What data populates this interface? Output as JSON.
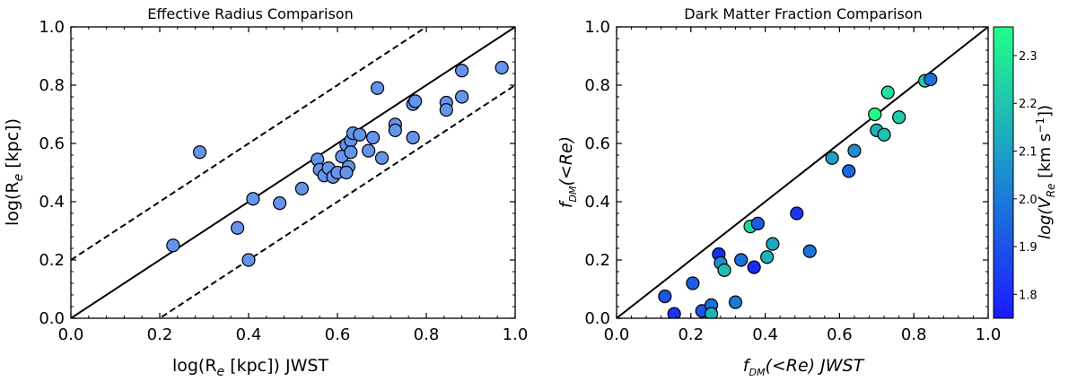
{
  "chart_data": [
    {
      "type": "scatter",
      "title": "Effective Radius Comparison",
      "xlabel_prefix": "log(R",
      "xlabel_sub": "e",
      "xlabel_suffix": " [kpc]) JWST",
      "ylabel_prefix": "log(R",
      "ylabel_sub": "e",
      "ylabel_suffix": " [kpc])",
      "xlim": [
        0.0,
        1.0
      ],
      "ylim": [
        0.0,
        1.0
      ],
      "xticks": [
        "0.0",
        "0.2",
        "0.4",
        "0.6",
        "0.8",
        "1.0"
      ],
      "yticks": [
        "0.0",
        "0.2",
        "0.4",
        "0.6",
        "0.8",
        "1.0"
      ],
      "marker_color": "#6495ED",
      "reference_lines": [
        {
          "style": "solid",
          "offset": 0.0
        },
        {
          "style": "dashed",
          "offset": 0.2
        },
        {
          "style": "dashed",
          "offset": -0.2
        }
      ],
      "points": [
        {
          "x": 0.23,
          "y": 0.25
        },
        {
          "x": 0.29,
          "y": 0.57
        },
        {
          "x": 0.375,
          "y": 0.31
        },
        {
          "x": 0.4,
          "y": 0.2
        },
        {
          "x": 0.41,
          "y": 0.41
        },
        {
          "x": 0.47,
          "y": 0.395
        },
        {
          "x": 0.52,
          "y": 0.445
        },
        {
          "x": 0.555,
          "y": 0.545
        },
        {
          "x": 0.56,
          "y": 0.51
        },
        {
          "x": 0.57,
          "y": 0.49
        },
        {
          "x": 0.58,
          "y": 0.515
        },
        {
          "x": 0.59,
          "y": 0.485
        },
        {
          "x": 0.6,
          "y": 0.5
        },
        {
          "x": 0.61,
          "y": 0.555
        },
        {
          "x": 0.62,
          "y": 0.595
        },
        {
          "x": 0.625,
          "y": 0.52
        },
        {
          "x": 0.62,
          "y": 0.5
        },
        {
          "x": 0.63,
          "y": 0.61
        },
        {
          "x": 0.635,
          "y": 0.635
        },
        {
          "x": 0.63,
          "y": 0.57
        },
        {
          "x": 0.65,
          "y": 0.63
        },
        {
          "x": 0.67,
          "y": 0.575
        },
        {
          "x": 0.68,
          "y": 0.62
        },
        {
          "x": 0.69,
          "y": 0.79
        },
        {
          "x": 0.7,
          "y": 0.55
        },
        {
          "x": 0.73,
          "y": 0.665
        },
        {
          "x": 0.73,
          "y": 0.645
        },
        {
          "x": 0.77,
          "y": 0.735
        },
        {
          "x": 0.775,
          "y": 0.745
        },
        {
          "x": 0.77,
          "y": 0.62
        },
        {
          "x": 0.845,
          "y": 0.74
        },
        {
          "x": 0.845,
          "y": 0.715
        },
        {
          "x": 0.88,
          "y": 0.85
        },
        {
          "x": 0.88,
          "y": 0.76
        },
        {
          "x": 0.97,
          "y": 0.86
        }
      ]
    },
    {
      "type": "scatter",
      "title": "Dark Matter Fraction Comparison",
      "xlabel_prefix": "f",
      "xlabel_sub": "DM",
      "xlabel_suffix": "(<Re) JWST",
      "ylabel_prefix": "f",
      "ylabel_sub": "DM",
      "ylabel_suffix": "(<Re)",
      "xlim": [
        0.0,
        1.0
      ],
      "ylim": [
        0.0,
        1.0
      ],
      "xticks": [
        "0.0",
        "0.2",
        "0.4",
        "0.6",
        "0.8",
        "1.0"
      ],
      "yticks": [
        "0.0",
        "0.2",
        "0.4",
        "0.6",
        "0.8",
        "1.0"
      ],
      "colorbar": {
        "label_prefix": "log(V",
        "label_sub": "Re",
        "label_suffix": " [km s",
        "label_sup": "−1",
        "label_end": "])",
        "range": [
          1.75,
          2.36
        ],
        "ticks": [
          "1.8",
          "1.9",
          "2.0",
          "2.1",
          "2.2",
          "2.3"
        ],
        "colors": [
          "#1a1aff",
          "#1d8fd0",
          "#22ff88"
        ]
      },
      "reference_lines": [
        {
          "style": "solid",
          "offset": 0.0
        }
      ],
      "points": [
        {
          "x": 0.13,
          "y": 0.075,
          "c": 1.9
        },
        {
          "x": 0.155,
          "y": 0.015,
          "c": 1.82
        },
        {
          "x": 0.205,
          "y": 0.12,
          "c": 1.93
        },
        {
          "x": 0.23,
          "y": 0.025,
          "c": 1.9
        },
        {
          "x": 0.255,
          "y": 0.045,
          "c": 1.98
        },
        {
          "x": 0.255,
          "y": 0.015,
          "c": 2.15
        },
        {
          "x": 0.275,
          "y": 0.22,
          "c": 1.8
        },
        {
          "x": 0.28,
          "y": 0.19,
          "c": 2.05
        },
        {
          "x": 0.29,
          "y": 0.165,
          "c": 2.18
        },
        {
          "x": 0.32,
          "y": 0.055,
          "c": 2.0
        },
        {
          "x": 0.335,
          "y": 0.2,
          "c": 1.97
        },
        {
          "x": 0.36,
          "y": 0.315,
          "c": 2.25
        },
        {
          "x": 0.37,
          "y": 0.175,
          "c": 1.8
        },
        {
          "x": 0.38,
          "y": 0.325,
          "c": 1.92
        },
        {
          "x": 0.405,
          "y": 0.21,
          "c": 2.15
        },
        {
          "x": 0.42,
          "y": 0.255,
          "c": 2.12
        },
        {
          "x": 0.485,
          "y": 0.36,
          "c": 1.82
        },
        {
          "x": 0.52,
          "y": 0.23,
          "c": 1.98
        },
        {
          "x": 0.58,
          "y": 0.55,
          "c": 2.1
        },
        {
          "x": 0.625,
          "y": 0.505,
          "c": 1.95
        },
        {
          "x": 0.64,
          "y": 0.575,
          "c": 2.05
        },
        {
          "x": 0.695,
          "y": 0.7,
          "c": 2.36
        },
        {
          "x": 0.7,
          "y": 0.645,
          "c": 2.15
        },
        {
          "x": 0.72,
          "y": 0.63,
          "c": 2.2
        },
        {
          "x": 0.73,
          "y": 0.775,
          "c": 2.28
        },
        {
          "x": 0.76,
          "y": 0.69,
          "c": 2.22
        },
        {
          "x": 0.83,
          "y": 0.815,
          "c": 2.22
        },
        {
          "x": 0.845,
          "y": 0.82,
          "c": 1.98
        }
      ]
    }
  ]
}
